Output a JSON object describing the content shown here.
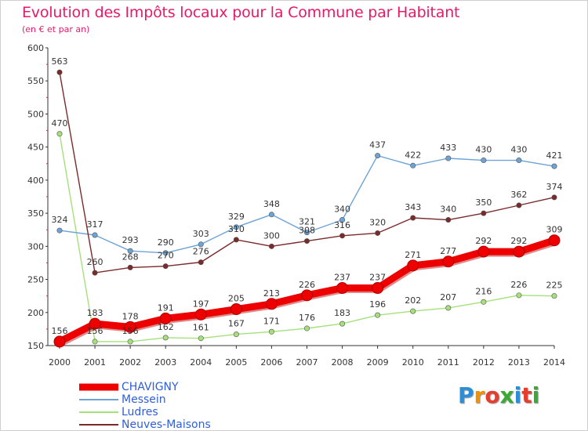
{
  "title": "Evolution des Impôts locaux pour la Commune par Habitant",
  "subtitle": "(en € et par an)",
  "brand": {
    "letters": [
      "P",
      "r",
      "o",
      "x",
      "i",
      "t",
      "i"
    ],
    "colors": [
      "#2a8fd8",
      "#f29100",
      "#e53d2e",
      "#3aaa35",
      "#2a8fd8",
      "#e53d2e",
      "#3aaa35"
    ]
  },
  "chart_data": {
    "type": "line",
    "categories": [
      "2000",
      "2001",
      "2002",
      "2003",
      "2004",
      "2005",
      "2006",
      "2007",
      "2008",
      "2009",
      "2010",
      "2011",
      "2012",
      "2013",
      "2014"
    ],
    "ylim": [
      150,
      600
    ],
    "yticks": [
      "150",
      "200",
      "250",
      "300",
      "350",
      "400",
      "450",
      "500",
      "550",
      "600"
    ],
    "grid": false,
    "legend_position": "bottom-left",
    "series": [
      {
        "name": "CHAVIGNY",
        "color": "#ee0000",
        "values": [
          156,
          183,
          178,
          191,
          197,
          205,
          213,
          226,
          237,
          237,
          271,
          277,
          292,
          292,
          309
        ]
      },
      {
        "name": "Messein",
        "color": "#6da3d6",
        "values": [
          324,
          317,
          293,
          290,
          303,
          329,
          348,
          321,
          340,
          437,
          422,
          433,
          430,
          430,
          421
        ]
      },
      {
        "name": "Ludres",
        "color": "#a6e07b",
        "values": [
          470,
          156,
          156,
          162,
          161,
          167,
          171,
          176,
          183,
          196,
          202,
          207,
          216,
          226,
          225
        ]
      },
      {
        "name": "Neuves-Maisons",
        "color": "#7a2a2a",
        "values": [
          563,
          260,
          268,
          270,
          276,
          310,
          300,
          308,
          316,
          320,
          343,
          340,
          350,
          362,
          374
        ]
      }
    ]
  }
}
